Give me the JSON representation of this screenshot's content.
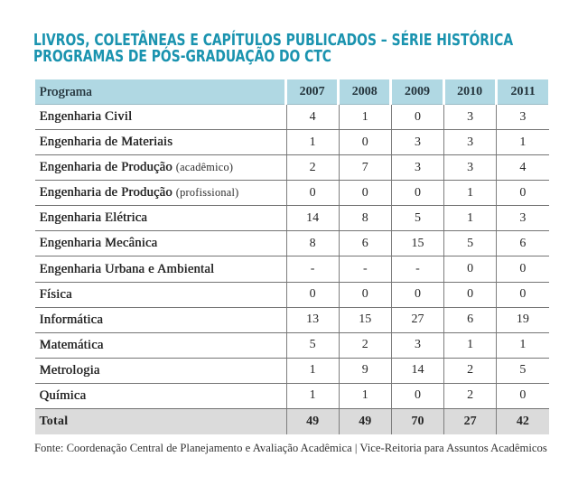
{
  "title": {
    "line1": "LIVROS, COLETÂNEAS E CAPÍTULOS PUBLICADOS – SÉRIE HISTÓRICA",
    "line2": "PROGRAMAS DE PÓS-GRADUAÇÃO DO CTC"
  },
  "colors": {
    "title_text": "#1a93af",
    "header_bg": "#b0d8e3",
    "total_row_bg": "#dbdbdb",
    "grid_line": "#747474",
    "body_text": "#272727"
  },
  "chart_data": {
    "type": "table",
    "title": "LIVROS, COLETÂNEAS E CAPÍTULOS PUBLICADOS – SÉRIE HISTÓRICA PROGRAMAS DE PÓS-GRADUAÇÃO DO CTC",
    "columns": [
      "Programa",
      "2007",
      "2008",
      "2009",
      "2010",
      "2011"
    ],
    "rows": [
      {
        "program": "Engenharia Civil",
        "suffix": "",
        "values": [
          "4",
          "1",
          "0",
          "3",
          "3"
        ]
      },
      {
        "program": "Engenharia de Materiais",
        "suffix": "",
        "values": [
          "1",
          "0",
          "3",
          "3",
          "1"
        ]
      },
      {
        "program": "Engenharia de Produção",
        "suffix": "(acadêmico)",
        "values": [
          "2",
          "7",
          "3",
          "3",
          "4"
        ]
      },
      {
        "program": "Engenharia de Produção",
        "suffix": "(profissional)",
        "values": [
          "0",
          "0",
          "0",
          "1",
          "0"
        ]
      },
      {
        "program": "Engenharia Elétrica",
        "suffix": "",
        "values": [
          "14",
          "8",
          "5",
          "1",
          "3"
        ]
      },
      {
        "program": "Engenharia Mecânica",
        "suffix": "",
        "values": [
          "8",
          "6",
          "15",
          "5",
          "6"
        ]
      },
      {
        "program": "Engenharia Urbana e Ambiental",
        "suffix": "",
        "values": [
          "-",
          "-",
          "-",
          "0",
          "0"
        ]
      },
      {
        "program": "Física",
        "suffix": "",
        "values": [
          "0",
          "0",
          "0",
          "0",
          "0"
        ]
      },
      {
        "program": "Informática",
        "suffix": "",
        "values": [
          "13",
          "15",
          "27",
          "6",
          "19"
        ]
      },
      {
        "program": "Matemática",
        "suffix": "",
        "values": [
          "5",
          "2",
          "3",
          "1",
          "1"
        ]
      },
      {
        "program": "Metrologia",
        "suffix": "",
        "values": [
          "1",
          "9",
          "14",
          "2",
          "5"
        ]
      },
      {
        "program": "Química",
        "suffix": "",
        "values": [
          "1",
          "1",
          "0",
          "2",
          "0"
        ]
      }
    ],
    "total": {
      "label": "Total",
      "values": [
        "49",
        "49",
        "70",
        "27",
        "42"
      ]
    }
  },
  "footer": {
    "source": "Fonte: Coordenação Central de Planejamento e Avaliação Acadêmica | Vice-Reitoria para Assuntos Acadêmicos"
  }
}
